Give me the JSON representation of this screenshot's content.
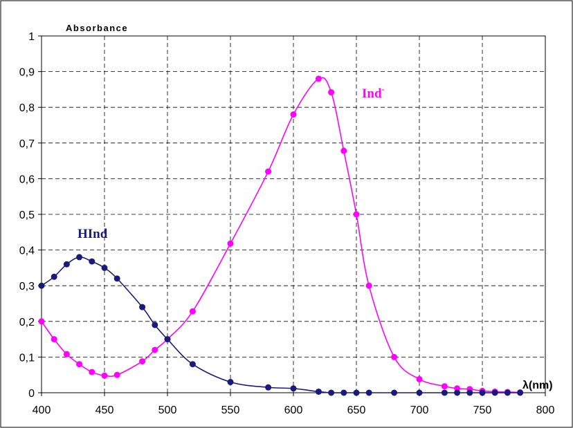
{
  "chart_data": {
    "type": "line",
    "ylabel": "Absorbance",
    "xlabel": "λ(nm)",
    "xlim": [
      400,
      800
    ],
    "ylim": [
      0,
      1
    ],
    "x_ticks": [
      "400",
      "450",
      "500",
      "550",
      "600",
      "650",
      "700",
      "750",
      "800"
    ],
    "y_ticks": [
      "0",
      "0,1",
      "0,2",
      "0,3",
      "0,4",
      "0,5",
      "0,6",
      "0,7",
      "0,8",
      "0,9",
      "1"
    ],
    "grid": true,
    "series": [
      {
        "name": "HInd",
        "color": "#1a1a78",
        "points": [
          [
            400,
            0.3
          ],
          [
            410,
            0.325
          ],
          [
            420,
            0.36
          ],
          [
            430,
            0.38
          ],
          [
            440,
            0.368
          ],
          [
            450,
            0.35
          ],
          [
            460,
            0.32
          ],
          [
            480,
            0.24
          ],
          [
            490,
            0.19
          ],
          [
            500,
            0.15
          ],
          [
            520,
            0.08
          ],
          [
            550,
            0.03
          ],
          [
            580,
            0.015
          ],
          [
            600,
            0.012
          ],
          [
            620,
            0.003
          ],
          [
            630,
            0
          ],
          [
            640,
            0
          ],
          [
            650,
            0
          ],
          [
            660,
            0
          ],
          [
            680,
            0
          ],
          [
            700,
            0
          ],
          [
            720,
            0
          ],
          [
            730,
            0
          ],
          [
            740,
            0
          ],
          [
            750,
            0
          ],
          [
            760,
            0
          ],
          [
            770,
            0
          ],
          [
            780,
            0
          ]
        ]
      },
      {
        "name": "Ind",
        "name_superscript": "-",
        "color": "#ff00ff",
        "points": [
          [
            400,
            0.2
          ],
          [
            410,
            0.15
          ],
          [
            420,
            0.108
          ],
          [
            430,
            0.08
          ],
          [
            440,
            0.058
          ],
          [
            450,
            0.048
          ],
          [
            460,
            0.05
          ],
          [
            480,
            0.088
          ],
          [
            490,
            0.12
          ],
          [
            500,
            0.15
          ],
          [
            520,
            0.228
          ],
          [
            550,
            0.418
          ],
          [
            580,
            0.62
          ],
          [
            600,
            0.78
          ],
          [
            620,
            0.88
          ],
          [
            630,
            0.842
          ],
          [
            640,
            0.678
          ],
          [
            650,
            0.5
          ],
          [
            660,
            0.3
          ],
          [
            680,
            0.1
          ],
          [
            700,
            0.038
          ],
          [
            720,
            0.018
          ],
          [
            730,
            0.012
          ],
          [
            740,
            0.01
          ],
          [
            750,
            0.005
          ],
          [
            760,
            0.003
          ],
          [
            770,
            0.002
          ],
          [
            780,
            0.001
          ]
        ]
      }
    ]
  }
}
